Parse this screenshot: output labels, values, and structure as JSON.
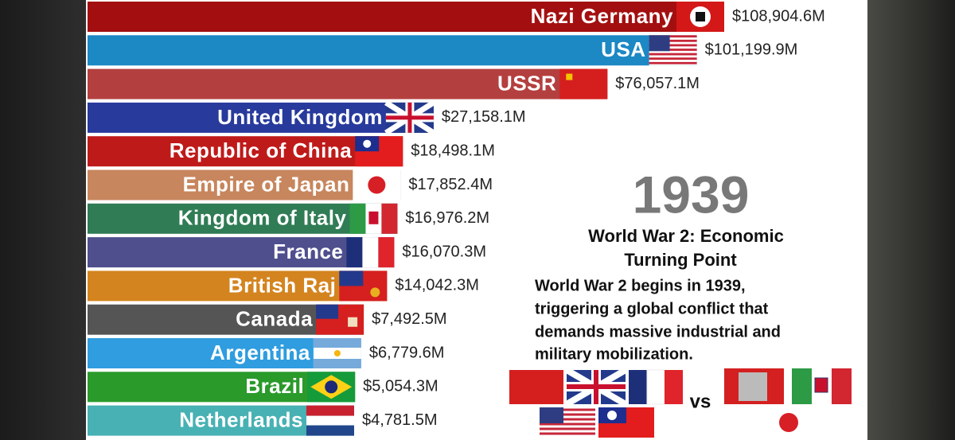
{
  "chart_data": {
    "type": "bar",
    "orientation": "horizontal",
    "categories": [
      "Nazi Germany",
      "USA",
      "USSR",
      "United Kingdom",
      "Republic of China",
      "Empire of Japan",
      "Kingdom of Italy",
      "France",
      "British Raj",
      "Canada",
      "Argentina",
      "Brazil",
      "Netherlands"
    ],
    "values": [
      108904.6,
      101199.9,
      76057.1,
      27158.1,
      18498.1,
      17852.4,
      16976.2,
      16070.3,
      14042.3,
      7492.5,
      6779.6,
      5054.3,
      4781.5
    ],
    "value_labels": [
      "$108,904.6M",
      "$101,199.9M",
      "$76,057.1M",
      "$27,158.1M",
      "$18,498.1M",
      "$17,852.4M",
      "$16,976.2M",
      "$16,070.3M",
      "$14,042.3M",
      "$7,492.5M",
      "$6,779.6M",
      "$5,054.3M",
      "$4,781.5M"
    ],
    "colors": [
      "#a30f10",
      "#1c88c4",
      "#b43f3f",
      "#283a9c",
      "#bf1a1a",
      "#c7865d",
      "#2f7c55",
      "#4f4f8e",
      "#d4841f",
      "#555555",
      "#2f9ddf",
      "#2a9a2b",
      "#48b1b4"
    ],
    "xlim": [
      -70220,
      108904.6
    ],
    "year": "1939",
    "heading": [
      "World War 2: Economic",
      "Turning Point"
    ],
    "body": [
      "World War 2 begins in 1939,",
      "triggering a global conflict that",
      "demands massive industrial and",
      "military mobilization."
    ],
    "versus": "vs"
  }
}
